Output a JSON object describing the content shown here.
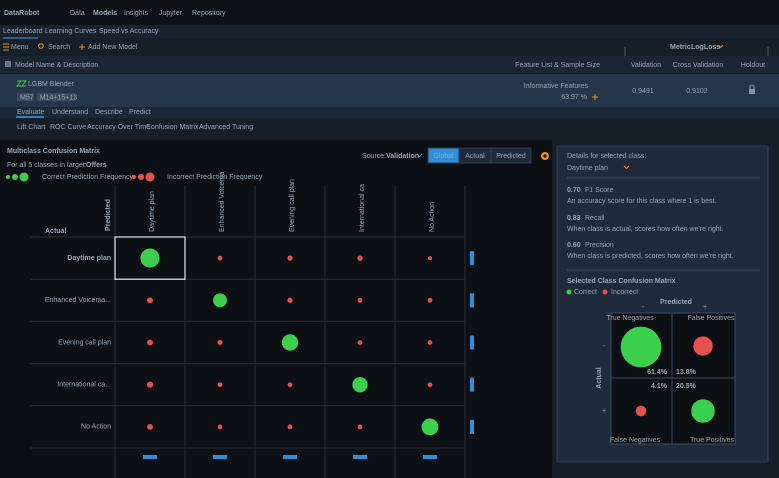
{
  "nav": {
    "brand": "DataRobot",
    "links": [
      "Data",
      "Models",
      "Insights",
      "Jupyter",
      "Repository"
    ]
  },
  "subnav": [
    "Leaderboard",
    "Learning Curves",
    "Speed vs Accuracy"
  ],
  "toolbar": {
    "menu": "Menu",
    "search": "Search",
    "add": "Add New Model",
    "metric_label": "Metric",
    "metric": "LogLoss"
  },
  "columns": [
    "Model Name & Description",
    "Feature List & Sample Size",
    "Validation",
    "Cross Validation",
    "Holdout"
  ],
  "model": {
    "name": "LGBM Blender",
    "tags": [
      "M57",
      "M14+15+13"
    ],
    "feature_list": "Informative Features",
    "sample_size": "63.97 %",
    "validation": "0.9491",
    "cross_validation": "0.9102"
  },
  "tabs": [
    "Evaluate",
    "Understand",
    "Describe",
    "Predict"
  ],
  "subtabs": [
    "Lift Chart",
    "ROC Curve",
    "Accuracy Over Time",
    "Confusion Matrix",
    "Advanced Tuning"
  ],
  "insight": {
    "title": "Multiclass Confusion Matrix",
    "subtitle": "For all 5 classes in target:",
    "target": "Offers",
    "legend_correct": "Correct Prediction Frequency",
    "legend_incorrect": "Incorrect Prediction Frequency",
    "source_label": "Source:",
    "source": "Validation",
    "modes": [
      "Global",
      "Actual",
      "Predicted"
    ],
    "axis_predicted": "Predicted",
    "axis_actual": "Actual",
    "row_labels": [
      "Daytime plan",
      "Enhanced Voicema...",
      "Evening call plan",
      "International ca...",
      "No Action"
    ],
    "column_labels": [
      "Daytime plan",
      "Enhanced Voicema",
      "Evening call plan",
      "International ca",
      "No Action"
    ],
    "counts": [
      [
        260,
        3,
        5,
        5,
        1
      ],
      [
        8,
        120,
        5,
        3,
        3
      ],
      [
        8,
        4,
        180,
        3,
        3
      ],
      [
        10,
        3,
        3,
        150,
        3
      ],
      [
        8,
        3,
        3,
        3,
        190
      ]
    ]
  },
  "details": {
    "heading": "Details for selected class:",
    "class": "Daytime plan",
    "metrics": [
      {
        "value": "0.70",
        "name": "F1 Score",
        "description": "An accuracy score for this class where 1 is best."
      },
      {
        "value": "0.83",
        "name": "Recall",
        "description": "When class is actual, scores how often we're right."
      },
      {
        "value": "0.60",
        "name": "Precision",
        "description": "When class is predicted, scores how often we're right."
      }
    ],
    "matrix_title": "Selected Class Confusion Matrix",
    "legend_correct": "Correct",
    "legend_incorrect": "Incorrect",
    "axis_predicted": "Predicted",
    "axis_actual": "Actual",
    "negative": "-",
    "positive": "+",
    "quadrants": [
      {
        "label": "True Negatives",
        "percent": "61.4%"
      },
      {
        "label": "False Positives",
        "percent": "13.8%"
      },
      {
        "label": "False Negatives",
        "percent": "4.1%"
      },
      {
        "label": "True Positives",
        "percent": "20.5%"
      }
    ]
  }
}
